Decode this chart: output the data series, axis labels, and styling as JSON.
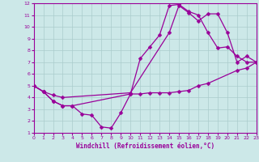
{
  "bg_color": "#cce8e8",
  "grid_color": "#aacccc",
  "line_color": "#990099",
  "xlabel": "Windchill (Refroidissement éolien,°C)",
  "xlim": [
    0,
    23
  ],
  "ylim": [
    1,
    12
  ],
  "xticks": [
    0,
    1,
    2,
    3,
    4,
    5,
    6,
    7,
    8,
    9,
    10,
    11,
    12,
    13,
    14,
    15,
    16,
    17,
    18,
    19,
    20,
    21,
    22,
    23
  ],
  "yticks": [
    1,
    2,
    3,
    4,
    5,
    6,
    7,
    8,
    9,
    10,
    11,
    12
  ],
  "lines": [
    {
      "x": [
        0,
        1,
        2,
        3,
        4,
        10,
        11,
        12,
        13,
        14,
        15,
        16,
        17,
        18,
        19,
        20,
        21,
        22,
        23
      ],
      "y": [
        5,
        4.5,
        3.7,
        3.3,
        3.3,
        4.3,
        7.3,
        8.3,
        9.3,
        11.8,
        11.9,
        11.3,
        11.0,
        9.5,
        8.2,
        8.3,
        7.5,
        7.0,
        7.0
      ]
    },
    {
      "x": [
        0,
        1,
        2,
        3,
        4,
        5,
        6,
        7,
        8,
        9,
        10,
        11,
        12,
        13,
        14,
        15,
        16,
        17,
        18,
        21,
        22,
        23
      ],
      "y": [
        5,
        4.5,
        3.7,
        3.3,
        3.3,
        2.6,
        2.5,
        1.5,
        1.4,
        2.7,
        4.3,
        4.3,
        4.4,
        4.4,
        4.4,
        4.5,
        4.6,
        5.0,
        5.2,
        6.3,
        6.5,
        7.0
      ]
    },
    {
      "x": [
        0,
        1,
        2,
        3,
        10,
        14,
        15,
        16,
        17,
        18,
        19,
        20,
        21,
        22,
        23
      ],
      "y": [
        5,
        4.5,
        4.2,
        4.0,
        4.4,
        9.5,
        11.8,
        11.2,
        10.5,
        11.1,
        11.1,
        9.5,
        7.0,
        7.5,
        7.0
      ]
    }
  ]
}
